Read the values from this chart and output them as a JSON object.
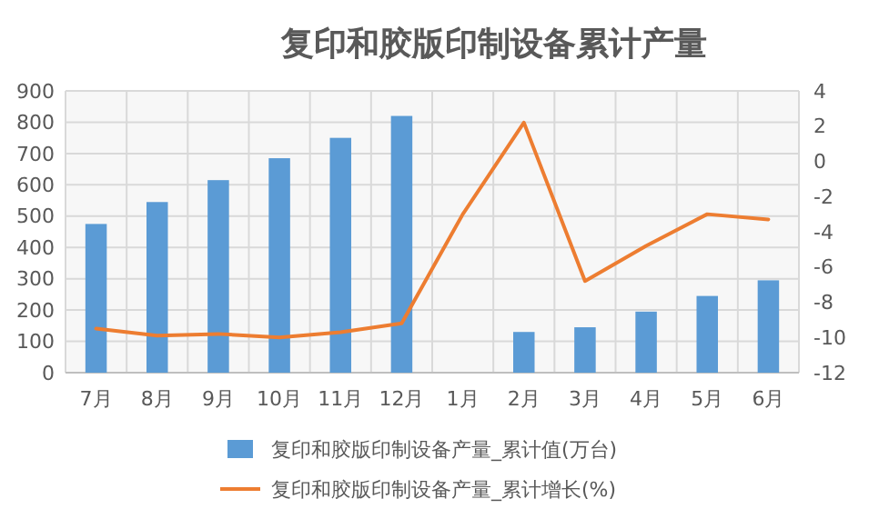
{
  "chart_data": {
    "type": "bar",
    "title": "复印和胶版印制设备累计产量",
    "categories": [
      "7月",
      "8月",
      "9月",
      "10月",
      "11月",
      "12月",
      "1月",
      "2月",
      "3月",
      "4月",
      "5月",
      "6月"
    ],
    "series": [
      {
        "name": "复印和胶版印制设备产量_累计值(万台)",
        "color": "#5b9bd5",
        "values": [
          475,
          545,
          615,
          685,
          750,
          820,
          null,
          130,
          145,
          195,
          245,
          295
        ]
      },
      {
        "name": "复印和胶版印制设备产量_累计增长(%)",
        "type": "line",
        "axis": "y2",
        "color": "#ed7d31",
        "values": [
          -9.5,
          -9.9,
          -9.8,
          -10.0,
          -9.7,
          -9.2,
          -3.0,
          2.2,
          -6.8,
          -4.8,
          -3.0,
          -3.3
        ]
      }
    ],
    "ylim": [
      0,
      900
    ],
    "yticks": [
      0,
      100,
      200,
      300,
      400,
      500,
      600,
      700,
      800,
      900
    ],
    "y2lim": [
      -12,
      4
    ],
    "y2ticks": [
      -12,
      -10,
      -8,
      -6,
      -4,
      -2,
      0,
      2,
      4
    ],
    "grid": true,
    "legend": "bottom"
  }
}
